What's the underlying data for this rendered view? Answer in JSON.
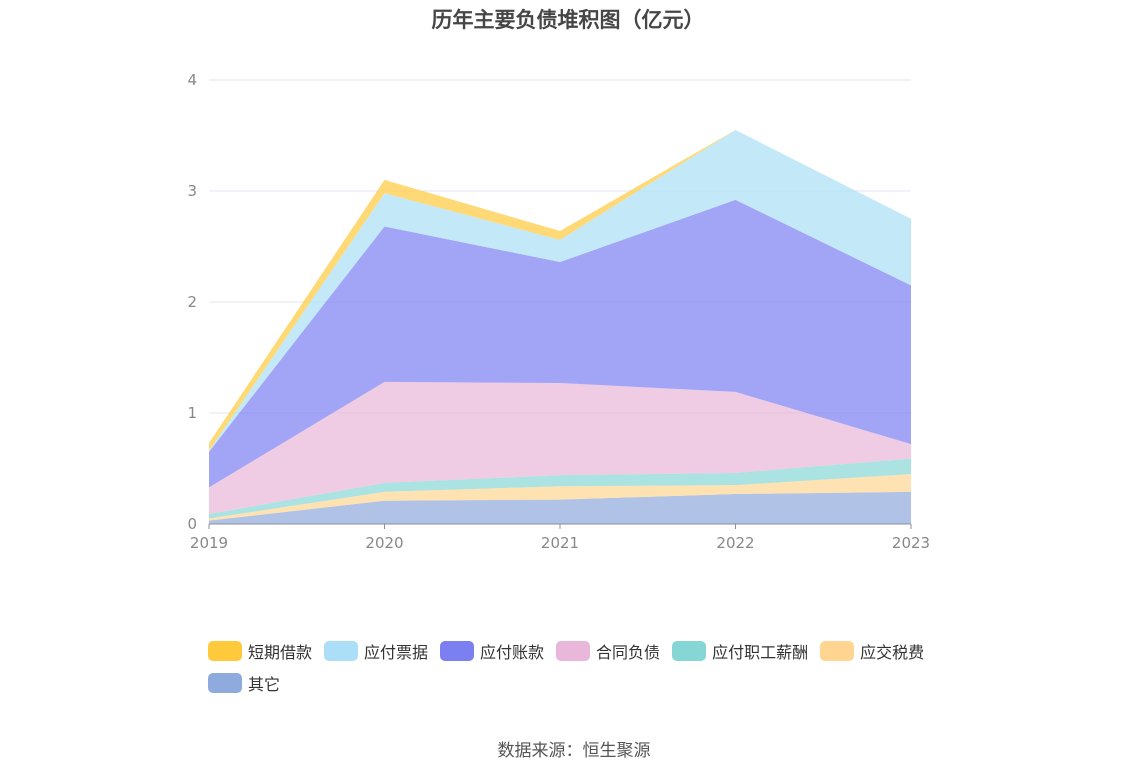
{
  "chart_data": {
    "type": "area",
    "stacked": true,
    "title": "历年主要负债堆积图（亿元）",
    "x": [
      "2019",
      "2020",
      "2021",
      "2022",
      "2023"
    ],
    "y_ticks": [
      "0",
      "1",
      "2",
      "3",
      "4"
    ],
    "ylim": [
      0,
      4
    ],
    "grid": true,
    "legend_position": "bottom",
    "series": [
      {
        "name": "其它",
        "color": "#8faadc",
        "values": [
          0.03,
          0.21,
          0.22,
          0.27,
          0.29
        ]
      },
      {
        "name": "应交税费",
        "color": "#ffd591",
        "values": [
          0.02,
          0.08,
          0.12,
          0.08,
          0.16
        ]
      },
      {
        "name": "应付职工薪酬",
        "color": "#87d6d6",
        "values": [
          0.04,
          0.08,
          0.1,
          0.11,
          0.14
        ]
      },
      {
        "name": "合同负债",
        "color": "#e8b7d9",
        "values": [
          0.24,
          0.91,
          0.83,
          0.73,
          0.13
        ]
      },
      {
        "name": "应付账款",
        "color": "#7b7ff2",
        "values": [
          0.32,
          1.4,
          1.09,
          1.73,
          1.43
        ]
      },
      {
        "name": "应付票据",
        "color": "#aadff7",
        "values": [
          0.01,
          0.3,
          0.2,
          0.63,
          0.6
        ]
      },
      {
        "name": "短期借款",
        "color": "#ffc93c",
        "values": [
          0.07,
          0.12,
          0.08,
          0.0,
          0.0
        ]
      }
    ],
    "legend_order": [
      "短期借款",
      "应付票据",
      "应付账款",
      "合同负债",
      "应付职工薪酬",
      "应交税费",
      "其它"
    ]
  },
  "source_text": "数据来源：恒生聚源"
}
